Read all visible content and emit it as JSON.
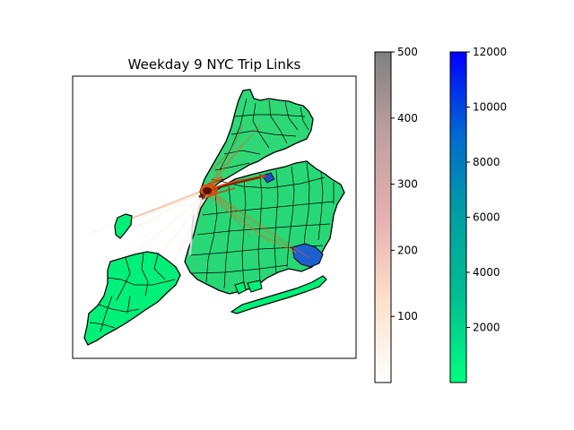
{
  "title": "Weekday 9 NYC Trip Links",
  "colorbars": [
    {
      "name": "trips",
      "colors": [
        "#ffffff",
        "#fde0c8",
        "#e6b0b0",
        "#bfa0a0",
        "#808080"
      ],
      "range": [
        0,
        500
      ],
      "ticks": [
        100,
        200,
        300,
        400,
        500
      ],
      "tick_labels": [
        "100",
        "200",
        "300",
        "400",
        "500"
      ]
    },
    {
      "name": "zone-count",
      "colors": [
        "#00ff80",
        "#00c090",
        "#00a0a0",
        "#006ad0",
        "#0000ff"
      ],
      "range": [
        0,
        12000
      ],
      "ticks": [
        2000,
        4000,
        6000,
        8000,
        10000,
        12000
      ],
      "tick_labels": [
        "2000",
        "4000",
        "6000",
        "8000",
        "10000",
        "12000"
      ]
    }
  ],
  "map": {
    "zone_color": "#00f07a",
    "zone_outline": "#000000",
    "hotspot_color": "#1e5fd0",
    "link_color": "#e0400a",
    "link_dark": "#5a0a00"
  }
}
